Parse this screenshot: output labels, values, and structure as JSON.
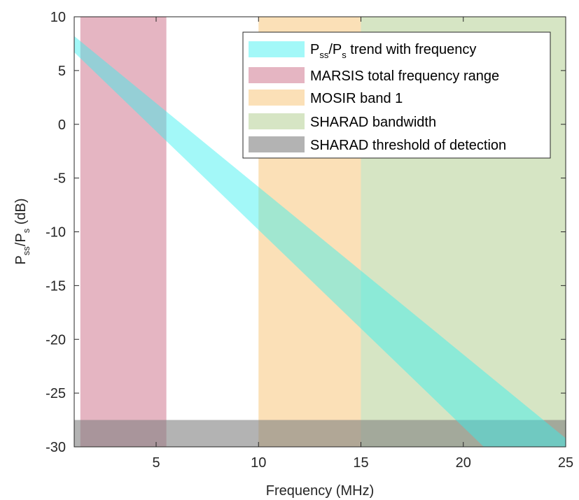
{
  "chart_data": {
    "type": "area",
    "xlabel": "Frequency (MHz)",
    "ylabel": {
      "main": "P",
      "sub1": "ss",
      "slash": "/P",
      "sub2": "s",
      "unit": " (dB)"
    },
    "xlim": [
      1.0,
      25
    ],
    "ylim": [
      -30,
      10
    ],
    "xticks": [
      5,
      10,
      15,
      20,
      25
    ],
    "yticks": [
      10,
      5,
      0,
      -5,
      -10,
      -15,
      -20,
      -25,
      -30
    ],
    "grid": false,
    "legend_position": "top-right",
    "bands": [
      {
        "name": "MARSIS total frequency range",
        "orientation": "vertical",
        "x_range": [
          1.3,
          5.5
        ],
        "color": "#d07890",
        "opacity": 0.55
      },
      {
        "name": "MOSIR band 1",
        "orientation": "vertical",
        "x_range": [
          10,
          15
        ],
        "color": "#f7c67c",
        "opacity": 0.55
      },
      {
        "name": "SHARAD bandwidth",
        "orientation": "vertical",
        "x_range": [
          15,
          25
        ],
        "color": "#b5d094",
        "opacity": 0.55
      },
      {
        "name": "SHARAD threshold of detection",
        "orientation": "horizontal",
        "y_range": [
          -30,
          -27.5
        ],
        "color": "#808080",
        "opacity": 0.6
      }
    ],
    "trend": {
      "name": {
        "p": "P",
        "sub1": "ss",
        "slash": "/P",
        "sub2": "s",
        "rest": " trend with frequency"
      },
      "color": "#33f0f0",
      "opacity": 0.45,
      "upper": [
        [
          1.0,
          8.2
        ],
        [
          25,
          -29.2
        ]
      ],
      "lower": [
        [
          1.0,
          6.7
        ],
        [
          21.0,
          -30
        ]
      ]
    }
  }
}
